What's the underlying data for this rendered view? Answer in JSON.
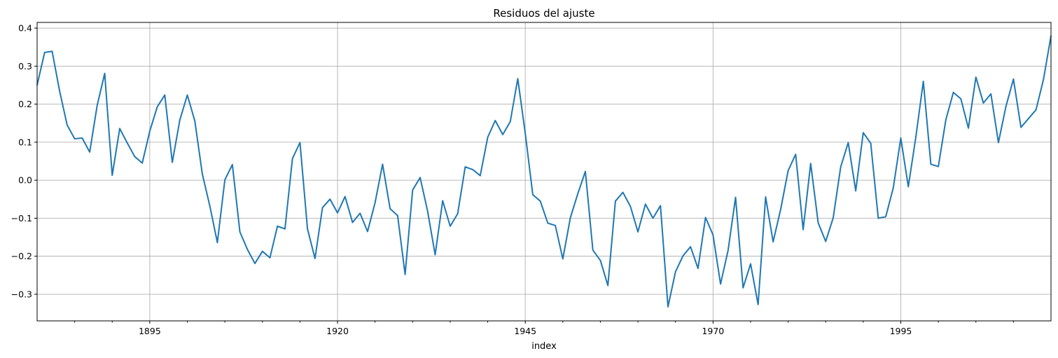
{
  "chart_data": {
    "type": "line",
    "title": "Residuos del ajuste",
    "xlabel": "index",
    "ylabel": "",
    "xlim": [
      1880,
      2015
    ],
    "ylim": [
      -0.37,
      0.415
    ],
    "grid": true,
    "x_major_ticks": [
      1895,
      1920,
      1945,
      1970,
      1995
    ],
    "x_tick_labels": [
      "1895",
      "1920",
      "1945",
      "1970",
      "1995"
    ],
    "y_ticks": [
      -0.3,
      -0.2,
      -0.1,
      0.0,
      0.1,
      0.2,
      0.3,
      0.4
    ],
    "y_tick_labels": [
      "−0.3",
      "−0.2",
      "−0.1",
      "0.0",
      "0.1",
      "0.2",
      "0.3",
      "0.4"
    ],
    "series": [
      {
        "color": "#1f77b4",
        "x": [
          1880,
          1881,
          1882,
          1883,
          1884,
          1885,
          1886,
          1887,
          1888,
          1889,
          1890,
          1891,
          1892,
          1893,
          1894,
          1895,
          1896,
          1897,
          1898,
          1899,
          1900,
          1901,
          1902,
          1903,
          1904,
          1905,
          1906,
          1907,
          1908,
          1909,
          1910,
          1911,
          1912,
          1913,
          1914,
          1915,
          1916,
          1917,
          1918,
          1919,
          1920,
          1921,
          1922,
          1923,
          1924,
          1925,
          1926,
          1927,
          1928,
          1929,
          1930,
          1931,
          1932,
          1933,
          1934,
          1935,
          1936,
          1937,
          1938,
          1939,
          1940,
          1941,
          1942,
          1943,
          1944,
          1945,
          1946,
          1947,
          1948,
          1949,
          1950,
          1951,
          1952,
          1953,
          1954,
          1955,
          1956,
          1957,
          1958,
          1959,
          1960,
          1961,
          1962,
          1963,
          1964,
          1965,
          1966,
          1967,
          1968,
          1969,
          1970,
          1971,
          1972,
          1973,
          1974,
          1975,
          1976,
          1977,
          1978,
          1979,
          1980,
          1981,
          1982,
          1983,
          1984,
          1985,
          1986,
          1987,
          1988,
          1989,
          1990,
          1991,
          1992,
          1993,
          1994,
          1995,
          1996,
          1997,
          1998,
          1999,
          2000,
          2001,
          2002,
          2003,
          2004,
          2005,
          2006,
          2007,
          2008,
          2009,
          2010,
          2011,
          2012,
          2013,
          2014,
          2015
        ],
        "y": [
          0.25,
          0.336,
          0.339,
          0.234,
          0.145,
          0.109,
          0.111,
          0.074,
          0.197,
          0.281,
          0.013,
          0.136,
          0.098,
          0.062,
          0.045,
          0.129,
          0.193,
          0.224,
          0.047,
          0.158,
          0.224,
          0.156,
          0.016,
          -0.068,
          -0.164,
          0.001,
          0.041,
          -0.136,
          -0.182,
          -0.219,
          -0.187,
          -0.204,
          -0.121,
          -0.128,
          0.057,
          0.099,
          -0.128,
          -0.206,
          -0.072,
          -0.05,
          -0.086,
          -0.043,
          -0.111,
          -0.087,
          -0.135,
          -0.059,
          0.042,
          -0.075,
          -0.093,
          -0.248,
          -0.026,
          0.007,
          -0.082,
          -0.196,
          -0.054,
          -0.121,
          -0.088,
          0.035,
          0.028,
          0.012,
          0.113,
          0.157,
          0.12,
          0.154,
          0.267,
          0.123,
          -0.038,
          -0.055,
          -0.113,
          -0.119,
          -0.207,
          -0.099,
          -0.035,
          0.023,
          -0.184,
          -0.211,
          -0.277,
          -0.055,
          -0.032,
          -0.069,
          -0.136,
          -0.063,
          -0.1,
          -0.067,
          -0.333,
          -0.241,
          -0.199,
          -0.175,
          -0.232,
          -0.098,
          -0.144,
          -0.273,
          -0.185,
          -0.045,
          -0.283,
          -0.22,
          -0.327,
          -0.044,
          -0.162,
          -0.077,
          0.025,
          0.068,
          -0.13,
          0.044,
          -0.112,
          -0.161,
          -0.099,
          0.035,
          0.099,
          -0.028,
          0.125,
          0.097,
          -0.1,
          -0.096,
          -0.02,
          0.111,
          -0.017,
          0.113,
          0.26,
          0.042,
          0.036,
          0.159,
          0.231,
          0.214,
          0.137,
          0.271,
          0.203,
          0.227,
          0.099,
          0.194,
          0.266,
          0.139,
          0.162,
          0.185,
          0.265,
          0.38
        ]
      }
    ]
  }
}
